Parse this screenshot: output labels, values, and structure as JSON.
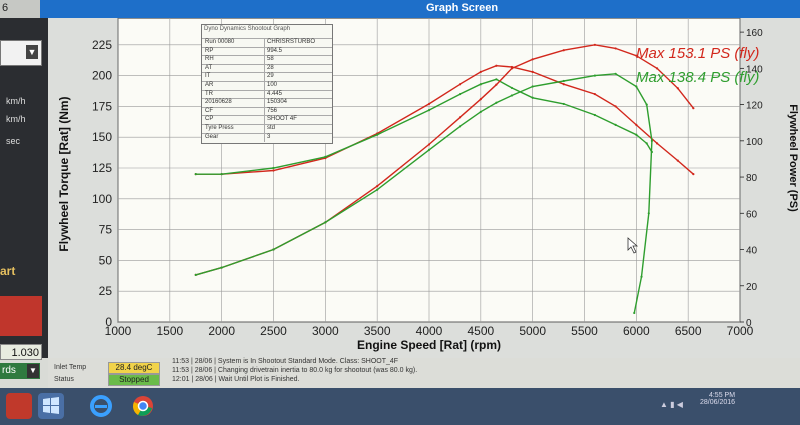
{
  "window": {
    "corner_label": "6",
    "title": "Graph Screen"
  },
  "left_panel": {
    "units": [
      "km/h",
      "km/h",
      "sec"
    ],
    "start_label": "art",
    "value": "1.030",
    "mode_label": "rds"
  },
  "legend": {
    "red": "Max 153.1 PS (fly)",
    "green": "Max 138.4 PS (fly)"
  },
  "info_table": {
    "header": "Dyno Dynamics Shootout Graph",
    "rows": [
      {
        "k": "Run 00080",
        "v": "CHRISRSTURBO"
      },
      {
        "k": "RP",
        "v": "994.5"
      },
      {
        "k": "RH",
        "v": "58"
      },
      {
        "k": "AT",
        "v": "28"
      },
      {
        "k": "IT",
        "v": "29"
      },
      {
        "k": "AR",
        "v": "100"
      },
      {
        "k": "TR",
        "v": "4.445"
      },
      {
        "k": "20160628",
        "v": "150304"
      },
      {
        "k": "CF",
        "v": "756"
      },
      {
        "k": "CP",
        "v": "SHOOT 4F"
      },
      {
        "k": "Tyre Press",
        "v": "std"
      },
      {
        "k": "Gear",
        "v": "3"
      }
    ]
  },
  "chart_data": {
    "type": "line",
    "xlabel": "Engine Speed [Rat] (rpm)",
    "ylabel": "Flywheel Torque [Rat] (Nm)",
    "y2label": "Flywheel Power (PS)",
    "xlim": [
      1000,
      7000
    ],
    "xticks": [
      1000,
      1500,
      2000,
      2500,
      3000,
      3500,
      4000,
      4500,
      5000,
      5500,
      6000,
      6500,
      7000
    ],
    "ylim": [
      0,
      250
    ],
    "yticks": [
      0,
      25,
      50,
      75,
      100,
      125,
      150,
      175,
      200,
      225,
      250
    ],
    "y2lim": [
      0,
      170
    ],
    "y2ticks": [
      0,
      20,
      40,
      60,
      80,
      100,
      120,
      140,
      160
    ],
    "grid": true,
    "legend_position": "top-right",
    "series": [
      {
        "name": "Max 153.1 PS (fly)",
        "kind": "torque",
        "color": "#d2271c",
        "x": [
          1750,
          2000,
          2500,
          3000,
          3500,
          4000,
          4300,
          4500,
          4650,
          4800,
          5000,
          5300,
          5600,
          5800,
          6000,
          6200,
          6400,
          6550
        ],
        "y": [
          120,
          120,
          123,
          133,
          153,
          177,
          193,
          203,
          208,
          207,
          203,
          193,
          185,
          175,
          160,
          145,
          131,
          120
        ]
      },
      {
        "name": "Max 138.4 PS (fly)",
        "kind": "torque",
        "color": "#2e9e2e",
        "x": [
          1750,
          2000,
          2500,
          3000,
          3500,
          4000,
          4300,
          4500,
          4650,
          4800,
          5000,
          5300,
          5600,
          5800,
          6000,
          6100,
          6150
        ],
        "y": [
          120,
          120,
          125,
          134,
          152,
          172,
          185,
          193,
          197,
          190,
          182,
          177,
          168,
          160,
          152,
          145,
          138
        ]
      },
      {
        "name": "Max 153.1 PS (fly)",
        "kind": "power",
        "color": "#d2271c",
        "x": [
          1750,
          2000,
          2500,
          3000,
          3500,
          4000,
          4300,
          4500,
          4650,
          4800,
          5000,
          5300,
          5600,
          5800,
          6000,
          6200,
          6400,
          6550
        ],
        "y": [
          26,
          30,
          40,
          55,
          75,
          98,
          113,
          123,
          131,
          140,
          145,
          150,
          153,
          151,
          147,
          140,
          129,
          118
        ]
      },
      {
        "name": "Max 138.4 PS (fly)",
        "kind": "power",
        "color": "#2e9e2e",
        "x": [
          1750,
          2000,
          2500,
          3000,
          3500,
          4000,
          4300,
          4500,
          4650,
          4800,
          5000,
          5300,
          5600,
          5800,
          6000,
          6100,
          6150,
          6120,
          6050,
          5980
        ],
        "y": [
          26,
          30,
          40,
          55,
          73,
          95,
          108,
          116,
          121,
          125,
          130,
          133,
          136,
          137,
          130,
          120,
          100,
          60,
          25,
          5
        ]
      }
    ]
  },
  "status_bar": {
    "inlet_label": "Inlet Temp",
    "inlet_value": "28.4 degC",
    "status_label": "Status",
    "status_value": "Stopped",
    "messages": [
      "11:53 | 28/06 | System is In Shootout Standard Mode. Class: SHOOT_4F",
      "11:53 | 28/06 | Changing drivetrain inertia to 80.0 kg for shootout (was 80.0 kg).",
      "12:01 | 28/06 | Wait Until Plot is Finished."
    ]
  },
  "taskbar": {
    "time": "4:55 PM",
    "date": "28/06/2016"
  }
}
